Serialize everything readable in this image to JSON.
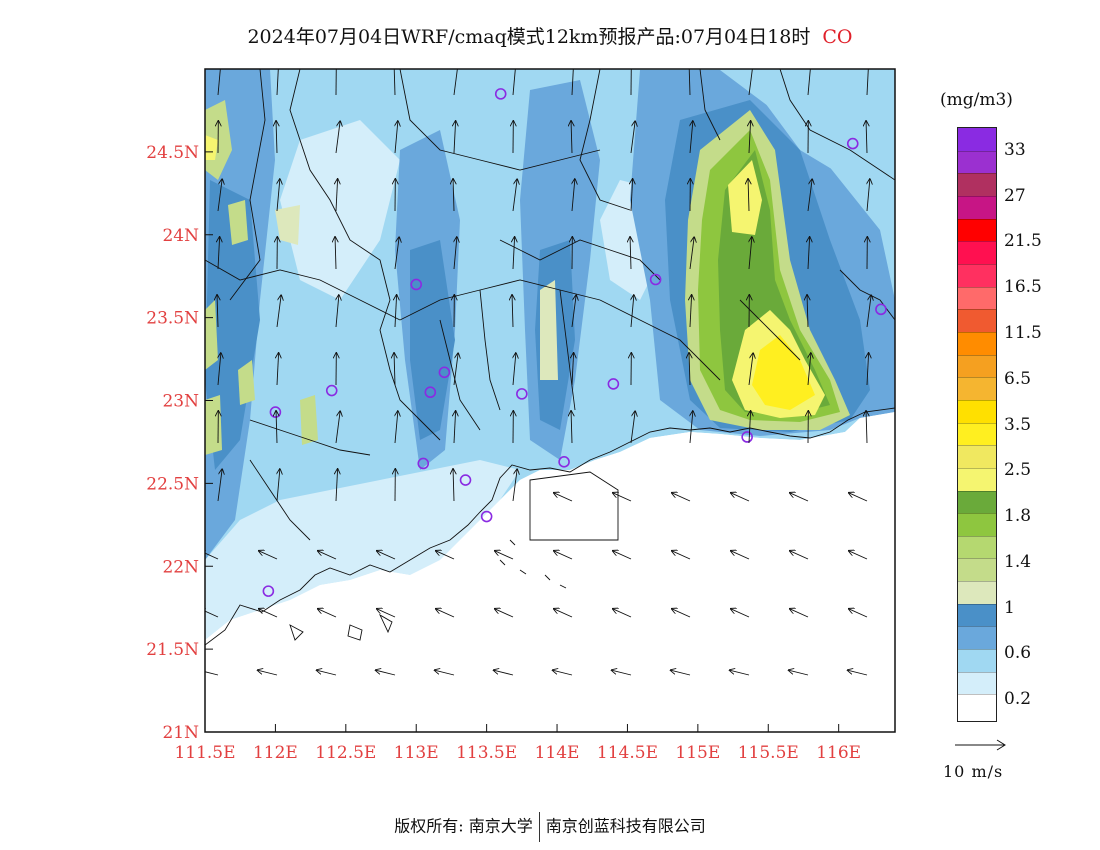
{
  "title": "2024年07月04日WRF/cmaq模式12km预报产品:07月04日18时",
  "species": "CO",
  "map": {
    "lon_range": [
      111.5,
      116.4
    ],
    "lat_range": [
      21.0,
      25.0
    ],
    "x_ticks": [
      "111.5E",
      "112E",
      "112.5E",
      "113E",
      "113.5E",
      "114E",
      "114.5E",
      "115E",
      "115.5E",
      "116E"
    ],
    "y_ticks": [
      "21N",
      "21.5N",
      "22N",
      "22.5N",
      "23N",
      "23.5N",
      "24N",
      "24.5N"
    ],
    "tick_color": "#e24040",
    "city_markers": [
      {
        "lon": 113.6,
        "lat": 24.85
      },
      {
        "lon": 116.1,
        "lat": 24.55
      },
      {
        "lon": 113.0,
        "lat": 23.7
      },
      {
        "lon": 114.7,
        "lat": 23.73
      },
      {
        "lon": 116.3,
        "lat": 23.55
      },
      {
        "lon": 113.2,
        "lat": 23.17
      },
      {
        "lon": 112.4,
        "lat": 23.06
      },
      {
        "lon": 113.1,
        "lat": 23.05
      },
      {
        "lon": 113.75,
        "lat": 23.04
      },
      {
        "lon": 114.4,
        "lat": 23.1
      },
      {
        "lon": 112.0,
        "lat": 22.93
      },
      {
        "lon": 115.35,
        "lat": 22.78
      },
      {
        "lon": 113.05,
        "lat": 22.62
      },
      {
        "lon": 113.35,
        "lat": 22.52
      },
      {
        "lon": 114.05,
        "lat": 22.63
      },
      {
        "lon": 113.5,
        "lat": 22.3
      },
      {
        "lon": 111.95,
        "lat": 21.85
      }
    ]
  },
  "colorbar": {
    "unit": "(mg/m3)",
    "colors": [
      "#8a2be2",
      "#9b30d0",
      "#b03060",
      "#c71585",
      "#ff0000",
      "#ff1050",
      "#ff3060",
      "#ff6a6a",
      "#f05a30",
      "#ff8c00",
      "#f5a020",
      "#f5b530",
      "#ffe000",
      "#ffef20",
      "#f0e860",
      "#f5f570",
      "#6aaa3a",
      "#8ec63f",
      "#b5d870",
      "#c4dc8a",
      "#dde8bc",
      "#4a90c8",
      "#6aa8dc",
      "#a0d8f2",
      "#d4eefa",
      "#ffffff"
    ],
    "labels": [
      "33",
      "27",
      "21.5",
      "16.5",
      "11.5",
      "6.5",
      "3.5",
      "2.5",
      "1.8",
      "1.4",
      "1",
      "0.6",
      "0.2"
    ]
  },
  "wind_reference": "10 m/s",
  "footer": {
    "left": "版权所有: 南京大学",
    "right": "南京创蓝科技有限公司"
  }
}
